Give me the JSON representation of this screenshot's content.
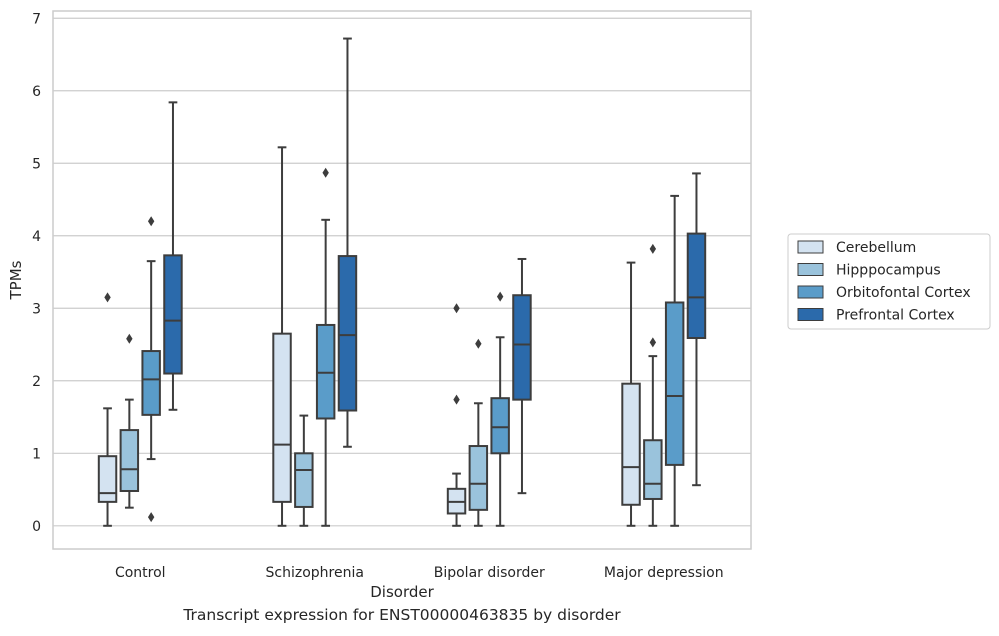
{
  "chart_data": {
    "type": "box",
    "title": "",
    "xlabel": "Disorder",
    "ylabel": "TPMs",
    "caption": "Transcript expression for ENST00000463835 by disorder",
    "ylim": [
      -0.32,
      7.1
    ],
    "yticks": [
      "0",
      "1",
      "2",
      "3",
      "4",
      "5",
      "6",
      "7"
    ],
    "categories": [
      "Control",
      "Schizophrenia",
      "Bipolar disorder",
      "Major depression"
    ],
    "grid": "horizontal",
    "legend_position": "right",
    "series": [
      {
        "name": "Cerebellum",
        "color": "#d4e3f1",
        "boxes": [
          {
            "whislo": 0.0,
            "q1": 0.33,
            "med": 0.45,
            "q3": 0.96,
            "whishi": 1.62,
            "fliers": [
              3.15
            ]
          },
          {
            "whislo": 0.0,
            "q1": 0.33,
            "med": 1.12,
            "q3": 2.65,
            "whishi": 5.22,
            "fliers": []
          },
          {
            "whislo": 0.0,
            "q1": 0.17,
            "med": 0.33,
            "q3": 0.51,
            "whishi": 0.72,
            "fliers": [
              1.74,
              3.0
            ]
          },
          {
            "whislo": 0.0,
            "q1": 0.29,
            "med": 0.81,
            "q3": 1.96,
            "whishi": 3.63,
            "fliers": []
          }
        ]
      },
      {
        "name": "Hipppocampus",
        "color": "#9ac3dc",
        "boxes": [
          {
            "whislo": 0.25,
            "q1": 0.48,
            "med": 0.78,
            "q3": 1.32,
            "whishi": 1.74,
            "fliers": [
              2.58
            ]
          },
          {
            "whislo": 0.0,
            "q1": 0.26,
            "med": 0.77,
            "q3": 1.0,
            "whishi": 1.52,
            "fliers": []
          },
          {
            "whislo": 0.0,
            "q1": 0.22,
            "med": 0.58,
            "q3": 1.1,
            "whishi": 1.69,
            "fliers": [
              2.51
            ]
          },
          {
            "whislo": 0.0,
            "q1": 0.37,
            "med": 0.58,
            "q3": 1.18,
            "whishi": 2.34,
            "fliers": [
              2.53,
              3.82
            ]
          }
        ]
      },
      {
        "name": "Orbitofontal Cortex",
        "color": "#5a9cc9",
        "boxes": [
          {
            "whislo": 0.92,
            "q1": 1.53,
            "med": 2.02,
            "q3": 2.41,
            "whishi": 3.65,
            "fliers": [
              4.2,
              0.12
            ]
          },
          {
            "whislo": 0.0,
            "q1": 1.48,
            "med": 2.11,
            "q3": 2.77,
            "whishi": 4.22,
            "fliers": [
              4.87
            ]
          },
          {
            "whislo": 0.0,
            "q1": 1.0,
            "med": 1.36,
            "q3": 1.76,
            "whishi": 2.6,
            "fliers": [
              3.16
            ]
          },
          {
            "whislo": 0.0,
            "q1": 0.84,
            "med": 1.79,
            "q3": 3.08,
            "whishi": 4.55,
            "fliers": []
          }
        ]
      },
      {
        "name": "Prefrontal Cortex",
        "color": "#2b6aab",
        "boxes": [
          {
            "whislo": 1.6,
            "q1": 2.1,
            "med": 2.83,
            "q3": 3.73,
            "whishi": 5.84,
            "fliers": []
          },
          {
            "whislo": 1.09,
            "q1": 1.59,
            "med": 2.63,
            "q3": 3.72,
            "whishi": 6.72,
            "fliers": []
          },
          {
            "whislo": 0.45,
            "q1": 1.74,
            "med": 2.5,
            "q3": 3.18,
            "whishi": 3.68,
            "fliers": []
          },
          {
            "whislo": 0.56,
            "q1": 2.59,
            "med": 3.15,
            "q3": 4.03,
            "whishi": 4.86,
            "fliers": []
          }
        ]
      }
    ]
  }
}
